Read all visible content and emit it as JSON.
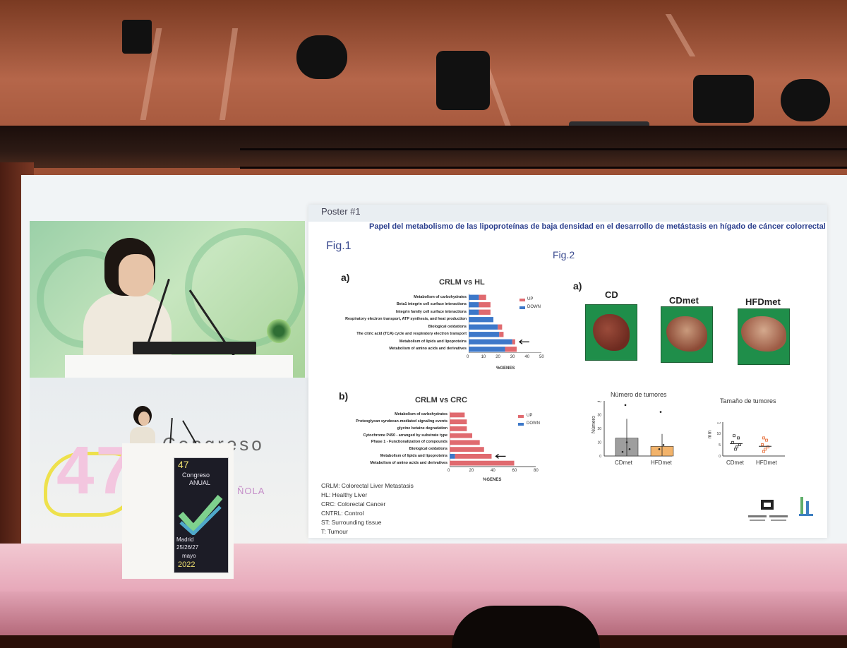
{
  "poster": {
    "number": "Poster #1",
    "title": "Papel del metabolismo de las lipoproteínas de baja densidad en el desarrollo de metástasis en hígado de cáncer colorrectal",
    "fig1_label": "Fig.1",
    "fig2_label": "Fig.2",
    "fig1a_label": "a)",
    "fig1b_label": "b)",
    "fig2a_label": "a)",
    "abbreviations": [
      "CRLM: Colorectal Liver Metastasis",
      "HL: Healthy Liver",
      "CRC: Colorectal Cancer",
      "CNTRL: Control",
      "ST: Surrounding tissue",
      "T: Tumour"
    ],
    "liver_groups": [
      "CD",
      "CDmet",
      "HFDmet"
    ],
    "tumor_count_title": "Número de tumores",
    "tumor_count_ylabel": "Número",
    "tumor_count_groups": [
      "CDmet",
      "HFDmet"
    ],
    "tumor_size_title": "Tamaño de tumores",
    "tumor_size_ylabel": "mm",
    "tumor_size_groups": [
      "CDmet",
      "HFDmet"
    ]
  },
  "chart_data": [
    {
      "type": "bar",
      "orientation": "horizontal",
      "title": "CRLM vs HL",
      "xlabel": "%GENES",
      "xlim": [
        0,
        50
      ],
      "xticks": [
        0,
        10,
        20,
        30,
        40,
        50
      ],
      "legend": [
        "UP",
        "DOWN"
      ],
      "colors": {
        "UP": "#e06a6f",
        "DOWN": "#3d78c9"
      },
      "categories": [
        "Metabolism of carbohydrates",
        "Beta1 integrin cell surface interactions",
        "Integrin family cell surface interactions",
        "Respiratory electron transport, ATP synthesis, and heat production",
        "Biological oxidations",
        "The citric acid (TCA) cycle and respiratory electron transport",
        "Metabolism of lipids and lipoproteins",
        "Metabolism of amino acids and derivatives"
      ],
      "series": [
        {
          "name": "DOWN",
          "values": [
            7,
            7,
            7,
            17,
            20,
            21,
            30,
            25
          ]
        },
        {
          "name": "UP",
          "values": [
            5,
            8,
            8,
            0,
            3,
            3,
            2,
            8
          ]
        }
      ]
    },
    {
      "type": "bar",
      "orientation": "horizontal",
      "title": "CRLM vs CRC",
      "xlabel": "%GENES",
      "xlim": [
        0,
        80
      ],
      "xticks": [
        0,
        20,
        40,
        60,
        80
      ],
      "legend": [
        "UP",
        "DOWN"
      ],
      "colors": {
        "UP": "#e06a6f",
        "DOWN": "#3d78c9"
      },
      "categories": [
        "Metabolism of carbohydrates",
        "Proteoglycan syndecan-mediated signaling events",
        "glycine betaine degradation",
        "Cytochrome P450 - arranged by substrate type",
        "Phase 1 - Functionalization of compounds",
        "Biological oxidations",
        "Metabolism of lipids and lipoproteins",
        "Metabolism of amino acids and derivatives"
      ],
      "series": [
        {
          "name": "DOWN",
          "values": [
            0,
            0,
            0,
            0,
            0,
            0,
            5,
            0
          ]
        },
        {
          "name": "UP",
          "values": [
            14,
            16,
            16,
            21,
            28,
            32,
            34,
            60
          ]
        }
      ]
    },
    {
      "type": "bar",
      "title": "Número de tumores",
      "ylabel": "Número",
      "categories": [
        "CDmet",
        "HFDmet"
      ],
      "values": [
        13,
        7
      ],
      "ylim": [
        0,
        40
      ],
      "yticks": [
        0,
        10,
        20,
        30,
        40
      ],
      "colors": [
        "#9e9e9e",
        "#f2b36b"
      ]
    },
    {
      "type": "scatter",
      "title": "Tamaño de tumores",
      "ylabel": "mm",
      "categories": [
        "CDmet",
        "HFDmet"
      ],
      "values": [
        5.5,
        4.3
      ],
      "ylim": [
        0,
        15
      ],
      "yticks": [
        0,
        5,
        10,
        15
      ],
      "colors": [
        "#444444",
        "#e9733f"
      ]
    }
  ],
  "venue": {
    "backdrop_text": "Congreso",
    "backdrop_number": "47",
    "backdrop_suffix": "ÑOLA",
    "podium_number": "47",
    "podium_line1": "Congreso",
    "podium_line2": "ANUAL",
    "podium_city": "Madrid",
    "podium_days": "25/26/27",
    "podium_month": "mayo",
    "podium_year": "2022"
  }
}
